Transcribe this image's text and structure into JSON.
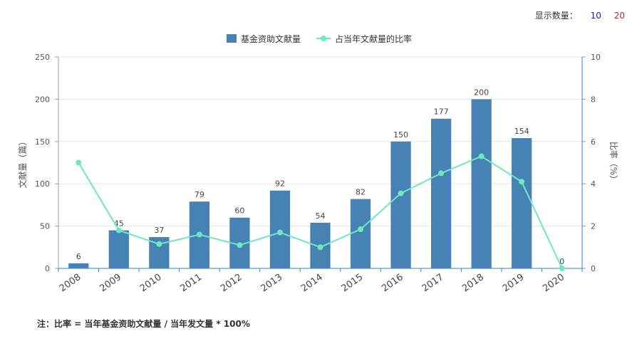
{
  "display_count": {
    "label": "显示数量：",
    "options": [
      "10",
      "20"
    ]
  },
  "footnote": "注：比率 = 当年基金资助文献量 / 当年发文量 * 100%",
  "colors": {
    "bar": "#4682b4",
    "line": "#7ff0c8",
    "line_stroke": "#6ee8c0",
    "axis": "#2a8ab0"
  },
  "chart_data": {
    "type": "bar",
    "categories": [
      "2008",
      "2009",
      "2010",
      "2011",
      "2012",
      "2013",
      "2014",
      "2015",
      "2016",
      "2017",
      "2018",
      "2019",
      "2020"
    ],
    "series": [
      {
        "name": "基金资助文献量",
        "type": "bar",
        "axis": "left",
        "values": [
          6,
          45,
          37,
          79,
          60,
          92,
          54,
          82,
          150,
          177,
          200,
          154,
          0
        ]
      },
      {
        "name": "占当年文献量的比率",
        "type": "line",
        "axis": "right",
        "values": [
          5.0,
          1.8,
          1.15,
          1.6,
          1.1,
          1.7,
          1.0,
          1.85,
          3.55,
          4.5,
          5.3,
          4.1,
          0.0
        ]
      }
    ],
    "data_labels": [
      "6",
      "45",
      "37",
      "79",
      "60",
      "92",
      "54",
      "82",
      "150",
      "177",
      "200",
      "154",
      "0"
    ],
    "ylabel": "文献量（篇）",
    "y2label": "比率（%）",
    "ylim": [
      0,
      250
    ],
    "y2lim": [
      0,
      10
    ],
    "yticks": [
      "0",
      "50",
      "100",
      "150",
      "200",
      "250"
    ],
    "y2ticks": [
      "0",
      "2",
      "4",
      "6",
      "8",
      "10"
    ],
    "grid": true,
    "legend": "top-center"
  }
}
